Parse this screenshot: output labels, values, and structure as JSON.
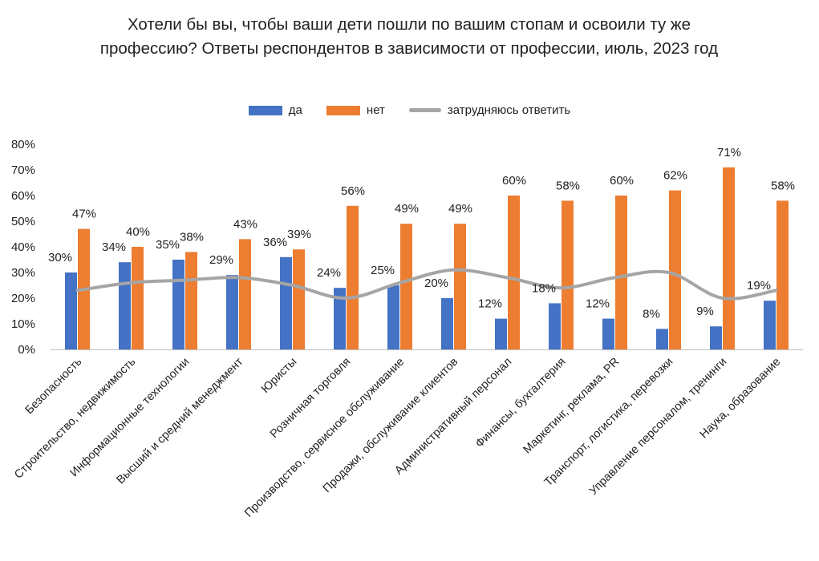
{
  "chart_data": {
    "type": "bar",
    "title": "Хотели бы вы, чтобы ваши дети пошли по вашим стопам и освоили ту же профессию? Ответы респондентов в зависимости от профессии, июль, 2023 год",
    "categories": [
      "Безопасность",
      "Строительство, недвижимость",
      "Информационные технологии",
      "Высший и средний менеджмент",
      "Юристы",
      "Розничная торговля",
      "Производство, сервисное обслуживание",
      "Продажи, обслуживание клиентов",
      "Административный персонал",
      "Финансы, бухгалтерия",
      "Маркетинг, реклама, PR",
      "Транспорт, логистика, перевозки",
      "Управление персоналом, тренинги",
      "Наука, образование"
    ],
    "series": [
      {
        "name": "да",
        "type": "bar",
        "color": "#4472c4",
        "values": [
          30,
          34,
          35,
          29,
          36,
          24,
          25,
          20,
          12,
          18,
          12,
          8,
          9,
          19
        ],
        "labels": [
          "30%",
          "34%",
          "35%",
          "29%",
          "36%",
          "24%",
          "25%",
          "20%",
          "12%",
          "18%",
          "12%",
          "8%",
          "9%",
          "19%"
        ]
      },
      {
        "name": "нет",
        "type": "bar",
        "color": "#ed7d31",
        "values": [
          47,
          40,
          38,
          43,
          39,
          56,
          49,
          49,
          60,
          58,
          60,
          62,
          71,
          58
        ],
        "labels": [
          "47%",
          "40%",
          "38%",
          "43%",
          "39%",
          "56%",
          "49%",
          "49%",
          "60%",
          "58%",
          "60%",
          "62%",
          "71%",
          "58%"
        ]
      },
      {
        "name": "затрудняюсь ответить",
        "type": "line",
        "smooth": true,
        "color": "#a5a5a5",
        "values": [
          23,
          26,
          27,
          28,
          25,
          20,
          26,
          31,
          28,
          24,
          28,
          30,
          20,
          23
        ]
      }
    ],
    "yaxis": {
      "min": 0,
      "max": 80,
      "step": 10,
      "tick_labels": [
        "0%",
        "10%",
        "20%",
        "30%",
        "40%",
        "50%",
        "60%",
        "70%",
        "80%"
      ]
    },
    "legend": "top-center",
    "grid": false
  }
}
